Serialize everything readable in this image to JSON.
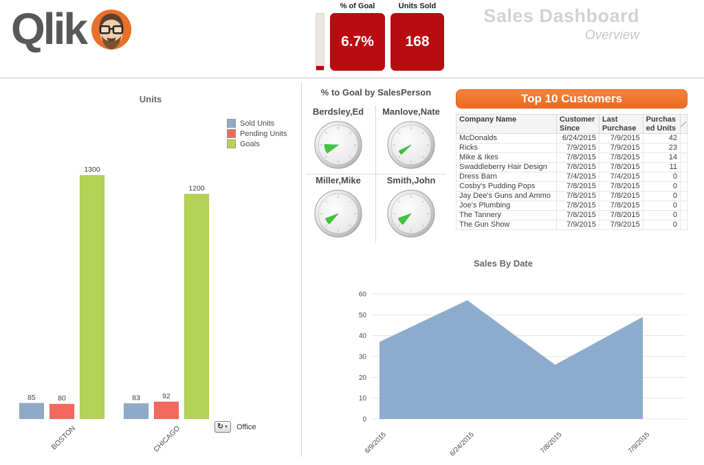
{
  "header": {
    "logo_text": "Qlik",
    "kpi_goal": {
      "label": "% of Goal",
      "value": "6.7%"
    },
    "kpi_units": {
      "label": "Units Sold",
      "value": "168"
    },
    "title": "Sales Dashboard",
    "subtitle": "Overview"
  },
  "icons": {
    "logo_avatar": "bearded-man-avatar-icon",
    "office_button": "cycle-arrow-icon",
    "office_dropdown": "chevron-down-icon"
  },
  "colors": {
    "accent_red": "#b90c10",
    "accent_orange": "#f1712c",
    "bar_blue": "#8fa9c9",
    "bar_salmon": "#f4685e",
    "bar_green": "#b4d356",
    "area_blue": "#8daccd",
    "gauge_green": "#3fc63c",
    "title_gray": "#d2d2d2"
  },
  "gauges": {
    "title": "% to Goal by SalesPerson",
    "people": [
      {
        "name": "Berdsley,Ed",
        "wedge_start": 233,
        "wedge_end": 272
      },
      {
        "name": "Manlove,Nate",
        "wedge_start": 226,
        "wedge_end": 244
      },
      {
        "name": "Miller,Mike",
        "wedge_start": 221,
        "wedge_end": 249
      },
      {
        "name": "Smith,John",
        "wedge_start": 217,
        "wedge_end": 250
      }
    ]
  },
  "customers": {
    "banner": "Top 10 Customers",
    "columns": [
      "Company Name",
      "Customer Since",
      "Last Purchase",
      "Purchased Units"
    ],
    "rows": [
      [
        "McDonalds",
        "6/24/2015",
        "7/9/2015",
        "42"
      ],
      [
        "Ricks",
        "7/9/2015",
        "7/9/2015",
        "23"
      ],
      [
        "Mike & Ikes",
        "7/8/2015",
        "7/8/2015",
        "14"
      ],
      [
        "Swaddleberry Hair Design",
        "7/8/2015",
        "7/8/2015",
        "11"
      ],
      [
        "Dress Barn",
        "7/4/2015",
        "7/4/2015",
        "0"
      ],
      [
        "Cosby's Pudding Pops",
        "7/8/2015",
        "7/8/2015",
        "0"
      ],
      [
        "Jay Dee's Guns and Ammo",
        "7/8/2015",
        "7/8/2015",
        "0"
      ],
      [
        "Joe's Plumbing",
        "7/8/2015",
        "7/8/2015",
        "0"
      ],
      [
        "The Tannery",
        "7/8/2015",
        "7/8/2015",
        "0"
      ],
      [
        "The Gun Show",
        "7/9/2015",
        "7/9/2015",
        "0"
      ]
    ]
  },
  "office_button": {
    "label": "Office"
  },
  "chart_data": [
    {
      "type": "bar",
      "title": "Units",
      "categories": [
        "BOSTON",
        "CHICAGO"
      ],
      "series": [
        {
          "name": "Sold Units",
          "color": "#8fa9c9",
          "values": [
            85,
            83
          ]
        },
        {
          "name": "Pending Units",
          "color": "#f4685e",
          "values": [
            80,
            92
          ]
        },
        {
          "name": "Goals",
          "color": "#b4d356",
          "values": [
            1300,
            1200
          ]
        }
      ],
      "value_labels": true,
      "legend_position": "top-right",
      "ylim": [
        0,
        1430
      ],
      "grid": false
    },
    {
      "type": "area",
      "title": "Sales By Date",
      "x": [
        "6/9/2015",
        "6/24/2015",
        "7/8/2015",
        "7/9/2015"
      ],
      "values": [
        37,
        57,
        26,
        49
      ],
      "xlabel": "",
      "ylabel": "",
      "ylim": [
        0,
        60
      ],
      "yticks": [
        0,
        10,
        20,
        30,
        40,
        50,
        60
      ],
      "fill_color": "#8daccd",
      "grid": true,
      "legend_position": "none"
    },
    {
      "type": "gauge",
      "title": "% to Goal by SalesPerson",
      "gauges": [
        {
          "label": "Berdsley,Ed"
        },
        {
          "label": "Manlove,Nate"
        },
        {
          "label": "Miller,Mike"
        },
        {
          "label": "Smith,John"
        }
      ]
    }
  ]
}
